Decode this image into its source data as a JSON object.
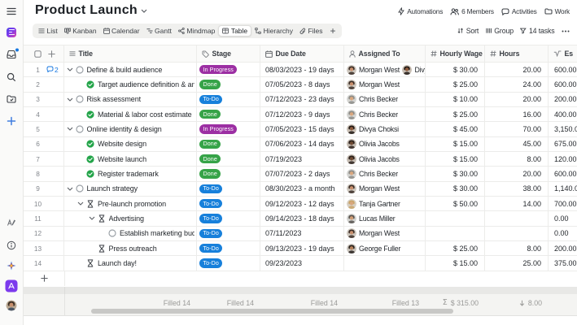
{
  "topbar": {
    "title": "Product Launch",
    "actions": [
      {
        "id": "automations",
        "label": "Automations",
        "icon": "zap-icon"
      },
      {
        "id": "members",
        "label": "6 Members",
        "icon": "members-icon"
      },
      {
        "id": "activities",
        "label": "Activities",
        "icon": "chat-icon"
      },
      {
        "id": "work",
        "label": "Work",
        "icon": "folder-icon"
      }
    ]
  },
  "toolbar": {
    "tabs": [
      {
        "id": "list",
        "label": "List",
        "icon": "list-icon",
        "active": false
      },
      {
        "id": "kanban",
        "label": "Kanban",
        "icon": "kanban-icon",
        "active": false
      },
      {
        "id": "calendar",
        "label": "Calendar",
        "icon": "calendar-icon",
        "active": false
      },
      {
        "id": "gantt",
        "label": "Gantt",
        "icon": "gantt-icon",
        "active": false
      },
      {
        "id": "mindmap",
        "label": "Mindmap",
        "icon": "mindmap-icon",
        "active": false
      },
      {
        "id": "table",
        "label": "Table",
        "icon": "table-icon",
        "active": true
      },
      {
        "id": "hierarchy",
        "label": "Hierarchy",
        "icon": "hierarchy-icon",
        "active": false
      },
      {
        "id": "files",
        "label": "Files",
        "icon": "files-icon",
        "active": false
      }
    ],
    "add_view_label": "+",
    "controls": [
      {
        "id": "sort",
        "label": "Sort",
        "icon": "sort-icon"
      },
      {
        "id": "group",
        "label": "Group",
        "icon": "group-icon"
      },
      {
        "id": "filter",
        "label": "14 tasks",
        "icon": "filter-icon"
      },
      {
        "id": "more",
        "label": "•••",
        "icon": "more-icon"
      }
    ]
  },
  "table": {
    "columns": [
      {
        "key": "title",
        "label": "Title",
        "icon": "lines-icon"
      },
      {
        "key": "stage",
        "label": "Stage",
        "icon": "tag-icon"
      },
      {
        "key": "due",
        "label": "Due Date",
        "icon": "calendar-icon"
      },
      {
        "key": "assign",
        "label": "Assigned To",
        "icon": "person-icon"
      },
      {
        "key": "wage",
        "label": "Hourly Wage",
        "icon": "hash-icon"
      },
      {
        "key": "hours",
        "label": "Hours",
        "icon": "hash-icon"
      },
      {
        "key": "est",
        "label": "Es",
        "icon": "formula-icon"
      }
    ],
    "stage_colors": {
      "In Progress": "#9c2fa3",
      "Done": "#36a348",
      "To-Do": "#1780db"
    },
    "rows": [
      {
        "num": "1",
        "comments": "2",
        "level": 0,
        "chevron": true,
        "status": "circle",
        "title": "Define & build audience",
        "stage": "In Progress",
        "due": "08/03/2023 - 19 days",
        "assignees": [
          {
            "name": "Morgan West",
            "avatar": "morgan"
          },
          {
            "name": "Divya",
            "avatar": "divya"
          }
        ],
        "wage": "$ 30.00",
        "hours": "20.00",
        "estimate": "600.00"
      },
      {
        "num": "2",
        "comments": "",
        "level": 1,
        "chevron": false,
        "status": "done",
        "title": "Target audience definition & analysis",
        "stage": "Done",
        "due": "07/05/2023 - 8 days",
        "assignees": [
          {
            "name": "Morgan West",
            "avatar": "morgan"
          }
        ],
        "wage": "$ 25.00",
        "hours": "24.00",
        "estimate": "600.00"
      },
      {
        "num": "3",
        "comments": "",
        "level": 0,
        "chevron": true,
        "status": "circle",
        "title": "Risk assessment",
        "stage": "To-Do",
        "due": "07/12/2023 - 23 days",
        "assignees": [
          {
            "name": "Chris Becker",
            "avatar": "chris"
          }
        ],
        "wage": "$ 10.00",
        "hours": "20.00",
        "estimate": "200.00"
      },
      {
        "num": "4",
        "comments": "",
        "level": 1,
        "chevron": false,
        "status": "done",
        "title": "Material & labor cost estimate",
        "stage": "Done",
        "due": "07/12/2023 - 9 days",
        "assignees": [
          {
            "name": "Chris Becker",
            "avatar": "chris"
          }
        ],
        "wage": "$ 25.00",
        "hours": "16.00",
        "estimate": "400.00"
      },
      {
        "num": "5",
        "comments": "",
        "level": 0,
        "chevron": true,
        "status": "circle",
        "title": "Online identity & design",
        "stage": "In Progress",
        "due": "07/05/2023 - 15 days",
        "assignees": [
          {
            "name": "Divya Choksi",
            "avatar": "divya"
          }
        ],
        "wage": "$ 45.00",
        "hours": "70.00",
        "estimate": "3,150.00"
      },
      {
        "num": "6",
        "comments": "",
        "level": 1,
        "chevron": false,
        "status": "done",
        "title": "Website design",
        "stage": "Done",
        "due": "07/06/2023 - 14 days",
        "assignees": [
          {
            "name": "Olivia Jacobs",
            "avatar": "olivia"
          }
        ],
        "wage": "$ 15.00",
        "hours": "45.00",
        "estimate": "675.00"
      },
      {
        "num": "7",
        "comments": "",
        "level": 1,
        "chevron": false,
        "status": "done",
        "title": "Website launch",
        "stage": "Done",
        "due": "07/19/2023",
        "assignees": [
          {
            "name": "Olivia Jacobs",
            "avatar": "olivia"
          }
        ],
        "wage": "$ 15.00",
        "hours": "8.00",
        "estimate": "120.00"
      },
      {
        "num": "8",
        "comments": "",
        "level": 1,
        "chevron": false,
        "status": "done",
        "title": "Register trademark",
        "stage": "Done",
        "due": "07/07/2023 - 2 days",
        "assignees": [
          {
            "name": "Chris Becker",
            "avatar": "chris"
          }
        ],
        "wage": "$ 30.00",
        "hours": "20.00",
        "estimate": "600.00"
      },
      {
        "num": "9",
        "comments": "",
        "level": 0,
        "chevron": true,
        "status": "circle",
        "title": "Launch strategy",
        "stage": "To-Do",
        "due": "08/30/2023 - a month",
        "assignees": [
          {
            "name": "Morgan West",
            "avatar": "morgan"
          }
        ],
        "wage": "$ 30.00",
        "hours": "38.00",
        "estimate": "1,140.00"
      },
      {
        "num": "10",
        "comments": "",
        "level": 1,
        "chevron": true,
        "status": "hourglass",
        "title": "Pre-launch promotion",
        "stage": "To-Do",
        "due": "09/12/2023 - 12 days",
        "assignees": [
          {
            "name": "Tanja Gartner",
            "avatar": "tanja"
          }
        ],
        "wage": "$ 50.00",
        "hours": "14.00",
        "estimate": "700.00"
      },
      {
        "num": "11",
        "comments": "",
        "level": 2,
        "chevron": true,
        "status": "hourglass",
        "title": "Advertising",
        "stage": "To-Do",
        "due": "09/14/2023 - 18 days",
        "assignees": [
          {
            "name": "Lucas Miller",
            "avatar": "lucas"
          }
        ],
        "wage": "",
        "hours": "",
        "estimate": "0.00"
      },
      {
        "num": "12",
        "comments": "",
        "level": 3,
        "chevron": false,
        "status": "circle",
        "title": "Establish marketing budget",
        "stage": "To-Do",
        "due": "07/11/2023",
        "assignees": [
          {
            "name": "Morgan West",
            "avatar": "morgan"
          }
        ],
        "wage": "",
        "hours": "",
        "estimate": "0.00"
      },
      {
        "num": "13",
        "comments": "",
        "level": 2,
        "chevron": false,
        "status": "hourglass",
        "title": "Press outreach",
        "stage": "To-Do",
        "due": "09/13/2023 - 19 days",
        "assignees": [
          {
            "name": "George Fuller",
            "avatar": "george"
          }
        ],
        "wage": "$ 25.00",
        "hours": "8.00",
        "estimate": "200.00"
      },
      {
        "num": "14",
        "comments": "",
        "level": 1,
        "chevron": false,
        "status": "hourglass",
        "title": "Launch day!",
        "stage": "To-Do",
        "due": "09/23/2023",
        "assignees": [],
        "wage": "$ 15.00",
        "hours": "25.00",
        "estimate": "375.00"
      }
    ],
    "add_row_label": "+",
    "summary": {
      "title": "Filled 14",
      "stage": "Filled 14",
      "due": "Filled 14",
      "assign": "Filled 13",
      "wage_icon": "sigma-icon",
      "wage": "$ 315.00",
      "hours_icon": "arrow-down-icon",
      "hours": "8.00"
    }
  },
  "avatars": {
    "morgan": {
      "bg": "#cfc8bf",
      "hair": "#3a2d26",
      "skin": "#c78f6d"
    },
    "divya": {
      "bg": "#c9bfb4",
      "hair": "#201814",
      "skin": "#8d5a3c"
    },
    "chris": {
      "bg": "#d5d5d2",
      "hair": "#8c8c88",
      "skin": "#d9a77e"
    },
    "olivia": {
      "bg": "#c5bcb2",
      "hair": "#2b211c",
      "skin": "#6e4a33"
    },
    "tanja": {
      "bg": "#d8d0c4",
      "hair": "#c9a56a",
      "skin": "#d9a77e"
    },
    "lucas": {
      "bg": "#d3d3d0",
      "hair": "#55514d",
      "skin": "#cf9c74"
    },
    "george": {
      "bg": "#cac4bc",
      "hair": "#26201c",
      "skin": "#b5805a"
    }
  }
}
